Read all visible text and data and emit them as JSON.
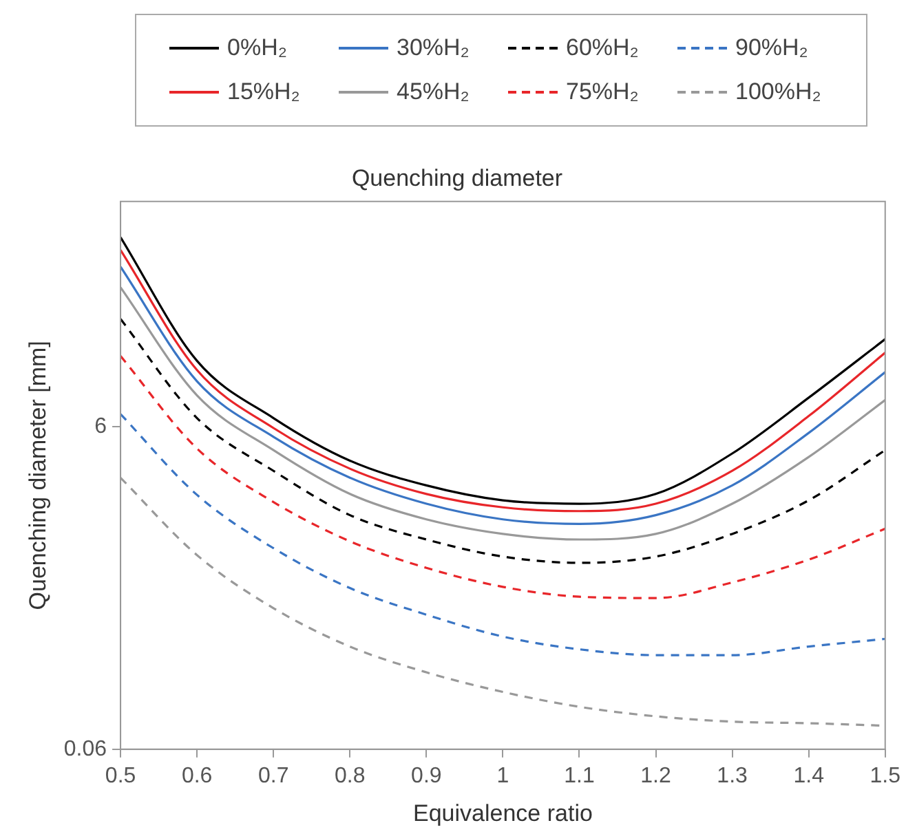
{
  "chart_data": {
    "type": "line",
    "title": "Quenching diameter",
    "xlabel": "Equivalence ratio",
    "ylabel": "Quenching diameter [mm]",
    "x": [
      0.5,
      0.6,
      0.7,
      0.8,
      0.9,
      1.0,
      1.1,
      1.2,
      1.3,
      1.4,
      1.5
    ],
    "xlim": [
      0.5,
      1.5
    ],
    "xticks": [
      0.5,
      0.6,
      0.7,
      0.8,
      0.9,
      1,
      1.1,
      1.2,
      1.3,
      1.4,
      1.5
    ],
    "ylim": [
      0.06,
      150
    ],
    "yticks": [
      0.06,
      6
    ],
    "log": "y",
    "grid": false,
    "legend": "top",
    "marker": "none",
    "series": [
      {
        "name": "0%H₂",
        "color": "#000000",
        "line_style": "solid",
        "values": [
          90,
          15.4,
          6.8,
          3.7,
          2.6,
          2.1,
          2.0,
          2.3,
          4.1,
          9.1,
          21
        ]
      },
      {
        "name": "15%H₂",
        "color": "#e8262a",
        "line_style": "solid",
        "values": [
          75,
          13.5,
          5.9,
          3.3,
          2.3,
          1.9,
          1.8,
          2.0,
          3.2,
          7.0,
          17.3
        ]
      },
      {
        "name": "30%H₂",
        "color": "#3a75c4",
        "line_style": "solid",
        "values": [
          59,
          11.5,
          5.2,
          2.9,
          2.0,
          1.6,
          1.5,
          1.7,
          2.6,
          5.5,
          13.1
        ]
      },
      {
        "name": "45%H₂",
        "color": "#999999",
        "line_style": "solid",
        "values": [
          44,
          9.4,
          4.3,
          2.3,
          1.6,
          1.3,
          1.2,
          1.3,
          2.0,
          3.9,
          8.8
        ]
      },
      {
        "name": "60%H₂",
        "color": "#000000",
        "line_style": "dashed",
        "values": [
          28,
          6.8,
          3.2,
          1.7,
          1.2,
          0.94,
          0.86,
          0.94,
          1.3,
          2.1,
          4.3
        ]
      },
      {
        "name": "75%H₂",
        "color": "#e8262a",
        "line_style": "dashed",
        "values": [
          16.5,
          4.4,
          2.05,
          1.17,
          0.8,
          0.61,
          0.53,
          0.52,
          0.65,
          0.9,
          1.4
        ]
      },
      {
        "name": "90%H₂",
        "color": "#3a75c4",
        "line_style": "dashed",
        "values": [
          7.2,
          2.27,
          1.06,
          0.6,
          0.41,
          0.3,
          0.25,
          0.23,
          0.23,
          0.26,
          0.29
        ]
      },
      {
        "name": "100%H₂",
        "color": "#999999",
        "line_style": "dashed",
        "values": [
          2.9,
          0.96,
          0.45,
          0.26,
          0.18,
          0.136,
          0.11,
          0.096,
          0.089,
          0.087,
          0.084
        ]
      }
    ]
  }
}
